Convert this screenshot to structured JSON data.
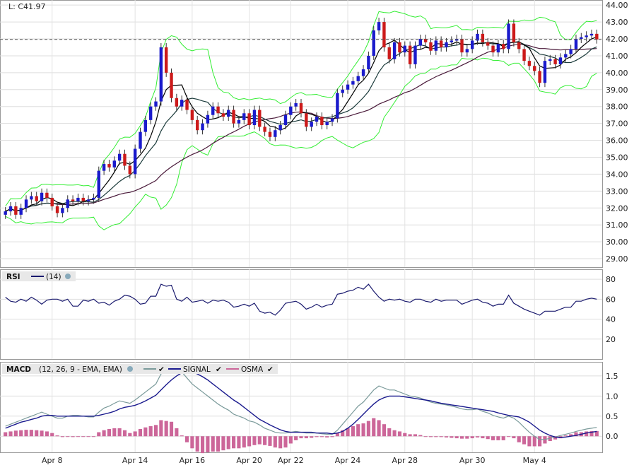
{
  "price_panel": {
    "last_label": "L: C41.97",
    "y_ticks": [
      "44.00",
      "43.00",
      "42.00",
      "41.00",
      "40.00",
      "39.00",
      "38.00",
      "37.00",
      "36.00",
      "35.00",
      "34.00",
      "33.00",
      "32.00",
      "31.00",
      "30.00",
      "29.00"
    ],
    "last_price": 41.97
  },
  "rsi_panel": {
    "title": "RSI",
    "param": "(14)",
    "line_color": "#1a1a6e",
    "y_ticks": [
      "80",
      "60",
      "40",
      "20"
    ]
  },
  "macd_panel": {
    "title": "MACD",
    "param": "(12, 26, 9 - EMA, EMA)",
    "signal_label": "SIGNAL",
    "osma_label": "OSMA",
    "macd_color": "#7a9a9a",
    "signal_color": "#1a1a8e",
    "osma_color": "#cc6699",
    "y_ticks": [
      "1.5",
      "1.0",
      "0.5",
      "0.0"
    ]
  },
  "x_axis": {
    "labels": [
      "Apr 8",
      "Apr 14",
      "Apr 16",
      "Apr 20",
      "Apr 22",
      "Apr 24",
      "Apr 28",
      "Apr 30",
      "May 4"
    ]
  },
  "colors": {
    "up_candle": "#1a1acc",
    "down_candle": "#cc1a1a",
    "bollinger": "#33ee33",
    "ma_fast": "#000000",
    "ma_mid": "#1a3a3a",
    "ma_slow": "#4a1a3a"
  },
  "chart_data": [
    {
      "type": "candlestick",
      "ylim": [
        28.5,
        44.3
      ],
      "close": [
        31.8,
        32.1,
        31.6,
        32.0,
        32.5,
        32.7,
        32.4,
        32.9,
        32.6,
        32.1,
        31.7,
        32.0,
        32.5,
        32.4,
        32.6,
        32.4,
        32.5,
        32.6,
        34.2,
        34.6,
        34.4,
        34.8,
        35.2,
        34.5,
        34.0,
        35.5,
        36.5,
        37.2,
        38.0,
        38.3,
        41.5,
        40.0,
        38.5,
        38.0,
        38.4,
        37.8,
        37.2,
        36.6,
        37.0,
        37.5,
        38.0,
        37.6,
        37.4,
        37.8,
        37.0,
        37.2,
        37.6,
        36.9,
        37.8,
        36.8,
        36.5,
        36.2,
        36.6,
        36.9,
        37.5,
        38.0,
        38.2,
        37.6,
        36.8,
        37.1,
        37.4,
        36.9,
        37.1,
        37.3,
        38.8,
        39.0,
        39.3,
        39.5,
        39.8,
        40.2,
        41.0,
        42.5,
        43.0,
        41.5,
        40.8,
        41.8,
        41.2,
        41.6,
        40.5,
        41.6,
        42.0,
        41.8,
        41.3,
        41.9,
        41.5,
        41.8,
        41.9,
        42.0,
        41.2,
        41.4,
        41.9,
        42.3,
        41.8,
        41.6,
        41.2,
        41.7,
        41.4,
        42.9,
        41.8,
        41.4,
        40.7,
        40.4,
        40.1,
        39.4,
        40.7,
        40.8,
        40.5,
        40.9,
        41.1,
        41.4,
        42.0,
        42.1,
        42.2,
        42.3,
        41.97
      ],
      "sample_x_labels": [
        "Apr 8",
        "Apr 14",
        "Apr 16",
        "Apr 20",
        "Apr 22",
        "Apr 24",
        "Apr 28",
        "Apr 30",
        "May 4"
      ]
    },
    {
      "type": "line",
      "name": "RSI (14)",
      "ylim": [
        0,
        90
      ],
      "values": [
        62,
        58,
        57,
        60,
        58,
        62,
        59,
        55,
        59,
        60,
        60,
        58,
        60,
        53,
        53,
        59,
        58,
        60,
        56,
        57,
        54,
        58,
        60,
        64,
        63,
        60,
        55,
        56,
        63,
        63,
        75,
        73,
        74,
        60,
        58,
        62,
        57,
        58,
        59,
        56,
        59,
        58,
        59,
        57,
        52,
        53,
        55,
        53,
        56,
        48,
        46,
        47,
        44,
        49,
        56,
        57,
        58,
        55,
        50,
        52,
        55,
        52,
        54,
        55,
        65,
        66,
        68,
        69,
        72,
        70,
        75,
        68,
        62,
        58,
        60,
        59,
        60,
        58,
        57,
        60,
        60,
        58,
        57,
        60,
        58,
        59,
        59,
        59,
        55,
        57,
        59,
        60,
        57,
        56,
        53,
        55,
        55,
        64,
        56,
        53,
        50,
        48,
        46,
        44,
        48,
        48,
        48,
        50,
        52,
        52,
        58,
        58,
        60,
        61,
        60
      ]
    },
    {
      "type": "line",
      "name": "MACD",
      "ylim": [
        -0.4,
        1.85
      ],
      "macd": [
        0.25,
        0.3,
        0.35,
        0.4,
        0.45,
        0.5,
        0.55,
        0.6,
        0.55,
        0.5,
        0.45,
        0.45,
        0.5,
        0.52,
        0.52,
        0.5,
        0.48,
        0.48,
        0.6,
        0.7,
        0.75,
        0.82,
        0.88,
        0.85,
        0.82,
        0.9,
        1.0,
        1.1,
        1.2,
        1.3,
        1.55,
        1.65,
        1.75,
        1.7,
        1.6,
        1.45,
        1.3,
        1.2,
        1.1,
        1.0,
        0.9,
        0.8,
        0.72,
        0.65,
        0.55,
        0.5,
        0.45,
        0.38,
        0.35,
        0.28,
        0.2,
        0.15,
        0.1,
        0.08,
        0.08,
        0.1,
        0.12,
        0.1,
        0.08,
        0.08,
        0.08,
        0.06,
        0.05,
        0.05,
        0.15,
        0.3,
        0.45,
        0.6,
        0.75,
        0.85,
        1.0,
        1.15,
        1.25,
        1.2,
        1.15,
        1.15,
        1.1,
        1.05,
        1.0,
        0.98,
        0.95,
        0.9,
        0.85,
        0.82,
        0.8,
        0.78,
        0.75,
        0.72,
        0.68,
        0.66,
        0.66,
        0.68,
        0.62,
        0.58,
        0.52,
        0.48,
        0.45,
        0.5,
        0.45,
        0.35,
        0.22,
        0.1,
        0.0,
        -0.08,
        -0.08,
        -0.05,
        -0.02,
        0.02,
        0.05,
        0.08,
        0.12,
        0.15,
        0.18,
        0.2,
        0.22
      ],
      "signal": [
        0.2,
        0.25,
        0.3,
        0.35,
        0.38,
        0.42,
        0.45,
        0.5,
        0.52,
        0.52,
        0.5,
        0.5,
        0.5,
        0.5,
        0.5,
        0.5,
        0.5,
        0.5,
        0.52,
        0.55,
        0.58,
        0.62,
        0.68,
        0.72,
        0.74,
        0.77,
        0.82,
        0.88,
        0.95,
        1.02,
        1.15,
        1.28,
        1.4,
        1.5,
        1.58,
        1.62,
        1.6,
        1.55,
        1.48,
        1.4,
        1.3,
        1.2,
        1.1,
        1.0,
        0.9,
        0.82,
        0.72,
        0.62,
        0.52,
        0.42,
        0.35,
        0.28,
        0.22,
        0.16,
        0.12,
        0.1,
        0.1,
        0.1,
        0.1,
        0.1,
        0.08,
        0.08,
        0.08,
        0.06,
        0.08,
        0.12,
        0.2,
        0.3,
        0.42,
        0.55,
        0.68,
        0.8,
        0.9,
        0.96,
        1.0,
        1.0,
        1.0,
        0.98,
        0.96,
        0.94,
        0.92,
        0.9,
        0.88,
        0.85,
        0.82,
        0.8,
        0.78,
        0.76,
        0.74,
        0.72,
        0.7,
        0.68,
        0.66,
        0.64,
        0.62,
        0.58,
        0.55,
        0.52,
        0.5,
        0.48,
        0.42,
        0.35,
        0.25,
        0.15,
        0.08,
        0.02,
        -0.02,
        -0.03,
        -0.02,
        0.0,
        0.02,
        0.05,
        0.08,
        0.1,
        0.12
      ],
      "osma": [
        0.1,
        0.12,
        0.14,
        0.15,
        0.16,
        0.16,
        0.15,
        0.14,
        0.12,
        0.08,
        0.02,
        -0.02,
        -0.01,
        -0.02,
        -0.01,
        0.0,
        -0.01,
        -0.01,
        0.1,
        0.15,
        0.18,
        0.2,
        0.2,
        0.15,
        0.08,
        0.12,
        0.18,
        0.22,
        0.25,
        0.28,
        0.4,
        0.38,
        0.36,
        0.2,
        0.02,
        -0.15,
        -0.3,
        -0.38,
        -0.42,
        -0.4,
        -0.38,
        -0.38,
        -0.35,
        -0.32,
        -0.3,
        -0.3,
        -0.28,
        -0.25,
        -0.22,
        -0.2,
        -0.22,
        -0.24,
        -0.28,
        -0.3,
        -0.28,
        -0.18,
        -0.1,
        -0.05,
        -0.05,
        -0.04,
        -0.02,
        -0.02,
        -0.03,
        -0.02,
        0.08,
        0.15,
        0.2,
        0.25,
        0.3,
        0.32,
        0.38,
        0.45,
        0.4,
        0.3,
        0.2,
        0.15,
        0.12,
        0.08,
        0.05,
        0.05,
        0.03,
        0.0,
        -0.02,
        -0.02,
        -0.02,
        -0.03,
        -0.04,
        -0.05,
        -0.06,
        -0.06,
        -0.05,
        -0.03,
        -0.05,
        -0.07,
        -0.1,
        -0.1,
        -0.1,
        0.0,
        -0.05,
        -0.15,
        -0.2,
        -0.25,
        -0.25,
        -0.25,
        -0.18,
        -0.12,
        -0.08,
        -0.05,
        0.02,
        0.05,
        0.1,
        0.1,
        0.12,
        0.13,
        0.13
      ]
    }
  ]
}
